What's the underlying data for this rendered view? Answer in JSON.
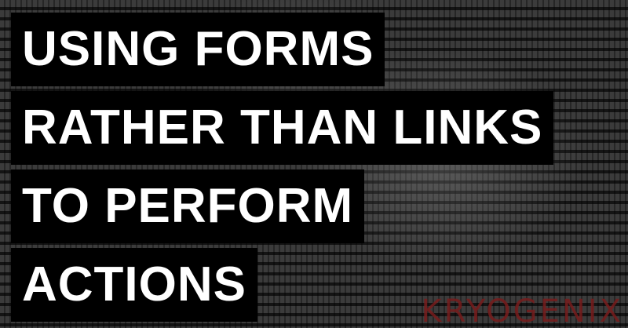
{
  "title_lines": [
    "USING FORMS",
    "RATHER THAN LINKS",
    "TO PERFORM",
    "ACTIONS"
  ],
  "watermark": "KRYOGENIX"
}
